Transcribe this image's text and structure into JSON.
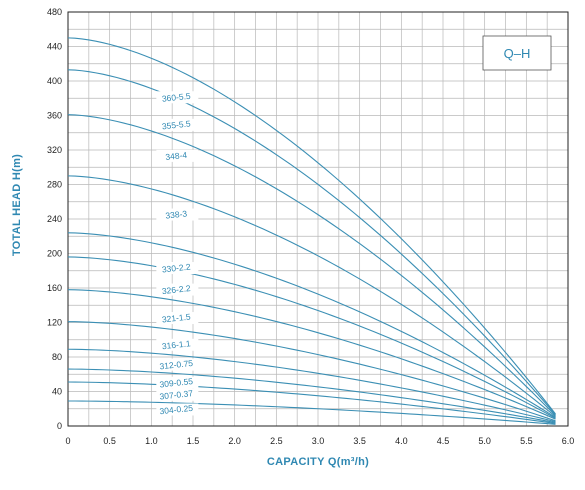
{
  "chart_data": {
    "type": "line",
    "title": "",
    "legend_text": "Q–H",
    "legend_position": "top-right",
    "xlabel": "CAPACITY Q(m³/h)",
    "ylabel": "TOTAL HEAD H(m)",
    "xlim": [
      0,
      6.0
    ],
    "ylim": [
      0,
      480
    ],
    "x_ticks": [
      0,
      0.5,
      1.0,
      1.5,
      2.0,
      2.5,
      3.0,
      3.5,
      4.0,
      4.5,
      5.0,
      5.5,
      6.0
    ],
    "x_tick_labels": [
      "0",
      "0.5",
      "1.0",
      "1.5",
      "2.0",
      "2.5",
      "3.0",
      "3.5",
      "4.0",
      "4.5",
      "5.0",
      "5.5",
      "6.0"
    ],
    "y_ticks": [
      0,
      40,
      80,
      120,
      160,
      200,
      240,
      280,
      320,
      360,
      400,
      440,
      480
    ],
    "y_tick_labels": [
      "0",
      "40",
      "80",
      "120",
      "160",
      "200",
      "240",
      "280",
      "320",
      "360",
      "400",
      "440",
      "480"
    ],
    "grid": true,
    "minor_grid": true,
    "x_end": 5.85,
    "series": [
      {
        "name": "360-5.5",
        "h0": 450,
        "h_end": 14
      },
      {
        "name": "355-5.5",
        "h0": 413,
        "h_end": 13
      },
      {
        "name": "348-4",
        "h0": 361,
        "h_end": 12
      },
      {
        "name": "338-3",
        "h0": 290,
        "h_end": 11
      },
      {
        "name": "330-2.2",
        "h0": 224,
        "h_end": 10
      },
      {
        "name": "326-2.2",
        "h0": 196,
        "h_end": 9
      },
      {
        "name": "321-1.5",
        "h0": 158,
        "h_end": 8
      },
      {
        "name": "316-1.1",
        "h0": 121,
        "h_end": 6
      },
      {
        "name": "312-0.75",
        "h0": 89,
        "h_end": 5
      },
      {
        "name": "309-0.55",
        "h0": 66,
        "h_end": 4
      },
      {
        "name": "307-0.37",
        "h0": 51,
        "h_end": 3
      },
      {
        "name": "304-0.25",
        "h0": 29,
        "h_end": 2
      }
    ],
    "label_points": [
      {
        "x": 1.3,
        "y": 380
      },
      {
        "x": 1.3,
        "y": 348
      },
      {
        "x": 1.3,
        "y": 312
      },
      {
        "x": 1.3,
        "y": 244
      },
      {
        "x": 1.3,
        "y": 182
      },
      {
        "x": 1.3,
        "y": 157
      },
      {
        "x": 1.3,
        "y": 124
      },
      {
        "x": 1.3,
        "y": 93
      },
      {
        "x": 1.3,
        "y": 70
      },
      {
        "x": 1.3,
        "y": 49
      },
      {
        "x": 1.3,
        "y": 35
      },
      {
        "x": 1.3,
        "y": 18
      }
    ],
    "colors": {
      "curve": "#3b8fb4",
      "text": "#2f88b2",
      "grid": "#b8b8b8",
      "axis": "#222222"
    }
  }
}
